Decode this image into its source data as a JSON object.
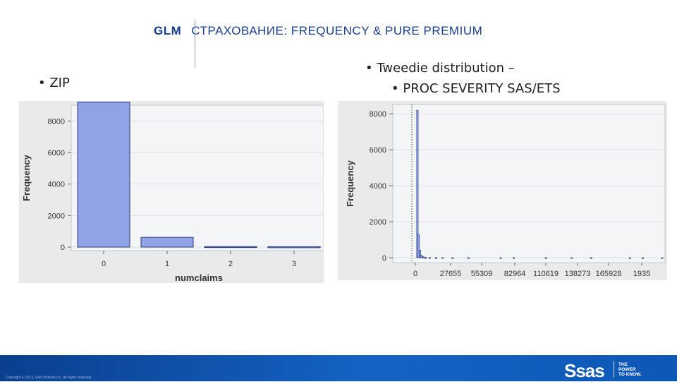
{
  "header": {
    "title_bold": "GLM",
    "title_rest": "СТРАХОВАНИЕ: FREQUENCY & PURE PREMIUM"
  },
  "bullets": {
    "left": "• ZIP",
    "right_1": "• Tweedie distribution –",
    "right_2": "• PROC SEVERITY SAS/ETS"
  },
  "chart_data": [
    {
      "type": "bar",
      "title": "",
      "xlabel": "numclaims",
      "ylabel": "Frequency",
      "categories": [
        "0",
        "1",
        "2",
        "3"
      ],
      "values": [
        9200,
        620,
        40,
        30
      ],
      "ylim": [
        0,
        9000
      ],
      "yticks": [
        "0",
        "2000",
        "4000",
        "6000",
        "8000"
      ],
      "grid": true
    },
    {
      "type": "bar",
      "title": "",
      "xlabel": "",
      "ylabel": "Frequency",
      "xticks": [
        "0",
        "27655",
        "55309",
        "82964",
        "110619",
        "138273",
        "165928",
        "1935"
      ],
      "yticks": [
        "0",
        "2000",
        "4000",
        "6000",
        "8000"
      ],
      "ylim": [
        0,
        8400
      ],
      "bin_centers": [
        500,
        1500,
        2500,
        3500,
        4500,
        5500,
        7000,
        10000,
        15000,
        20000,
        27655,
        40000,
        65000,
        75000,
        100000,
        120000,
        135000,
        165000,
        175000,
        190000
      ],
      "values": [
        8200,
        1300,
        420,
        150,
        70,
        40,
        25,
        15,
        10,
        8,
        10,
        6,
        6,
        5,
        5,
        4,
        5,
        6,
        4,
        6
      ],
      "xlim": [
        -1500,
        193500
      ],
      "grid": true
    }
  ],
  "footer": {
    "copyright": "Copyright © 2013, SAS Institute Inc. All rights reserved.",
    "logo_text": "Ssas",
    "tagline_1": "THE",
    "tagline_2": "POWER",
    "tagline_3": "TO KNOW."
  }
}
